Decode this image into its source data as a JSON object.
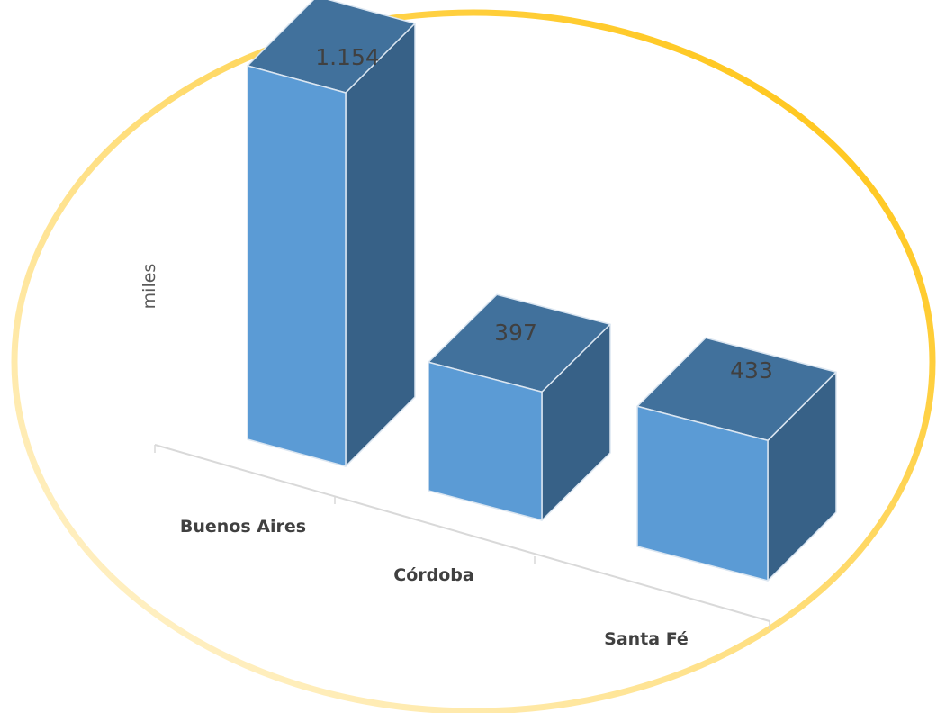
{
  "chart_data": {
    "type": "bar",
    "style": "3d-column",
    "categories": [
      "Buenos Aires",
      "Córdoba",
      "Santa Fé"
    ],
    "values": [
      1154,
      397,
      433
    ],
    "data_labels": [
      "1.154",
      "397",
      "433"
    ],
    "ylabel": "miles",
    "xlabel": "",
    "title": "",
    "grid": false,
    "legend": "none"
  },
  "colors": {
    "bar_front": "#5b9bd5",
    "bar_side": "#376187",
    "bar_top": "#41719c",
    "bar_edge": "#dbe6f1",
    "frame_light": "#fff3cc",
    "frame_dark": "#ffc000",
    "floor_line": "#d9d9d9",
    "text": "#404040"
  }
}
